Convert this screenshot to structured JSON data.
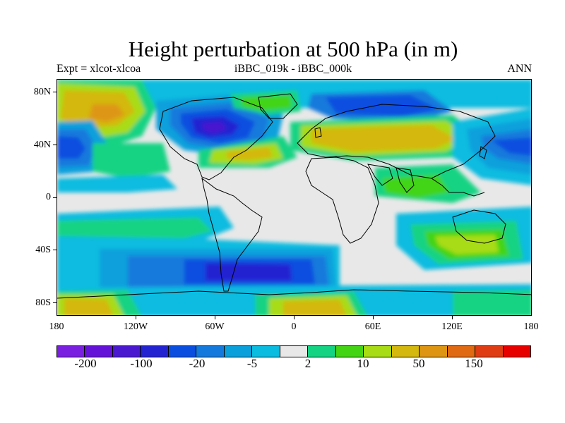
{
  "title": "Height perturbation at 500 hPa (in m)",
  "subtitle_left": "Expt = xlcot-xlcoa",
  "subtitle_center": "iBBC_019k - iBBC_000k",
  "subtitle_right": "ANN",
  "lat_labels": [
    "80N",
    "40N",
    "0",
    "40S",
    "80S"
  ],
  "lon_labels": [
    "180",
    "120W",
    "60W",
    "0",
    "60E",
    "120E",
    "180"
  ],
  "colorbar": {
    "colors": [
      "#7a1fe0",
      "#6512d8",
      "#4a18cf",
      "#2323d1",
      "#0a4ee0",
      "#1479dc",
      "#0aa0dc",
      "#0abce0",
      "#e8e8e8",
      "#14d383",
      "#43d414",
      "#a8dc14",
      "#d4b80e",
      "#de9612",
      "#e06a12",
      "#e03c14",
      "#e60000"
    ],
    "labels": [
      "-200",
      "-100",
      "-20",
      "-5",
      "2",
      "10",
      "50",
      "150"
    ]
  },
  "palette": {
    "background": "#e8e8e8",
    "coast": "#000000"
  }
}
